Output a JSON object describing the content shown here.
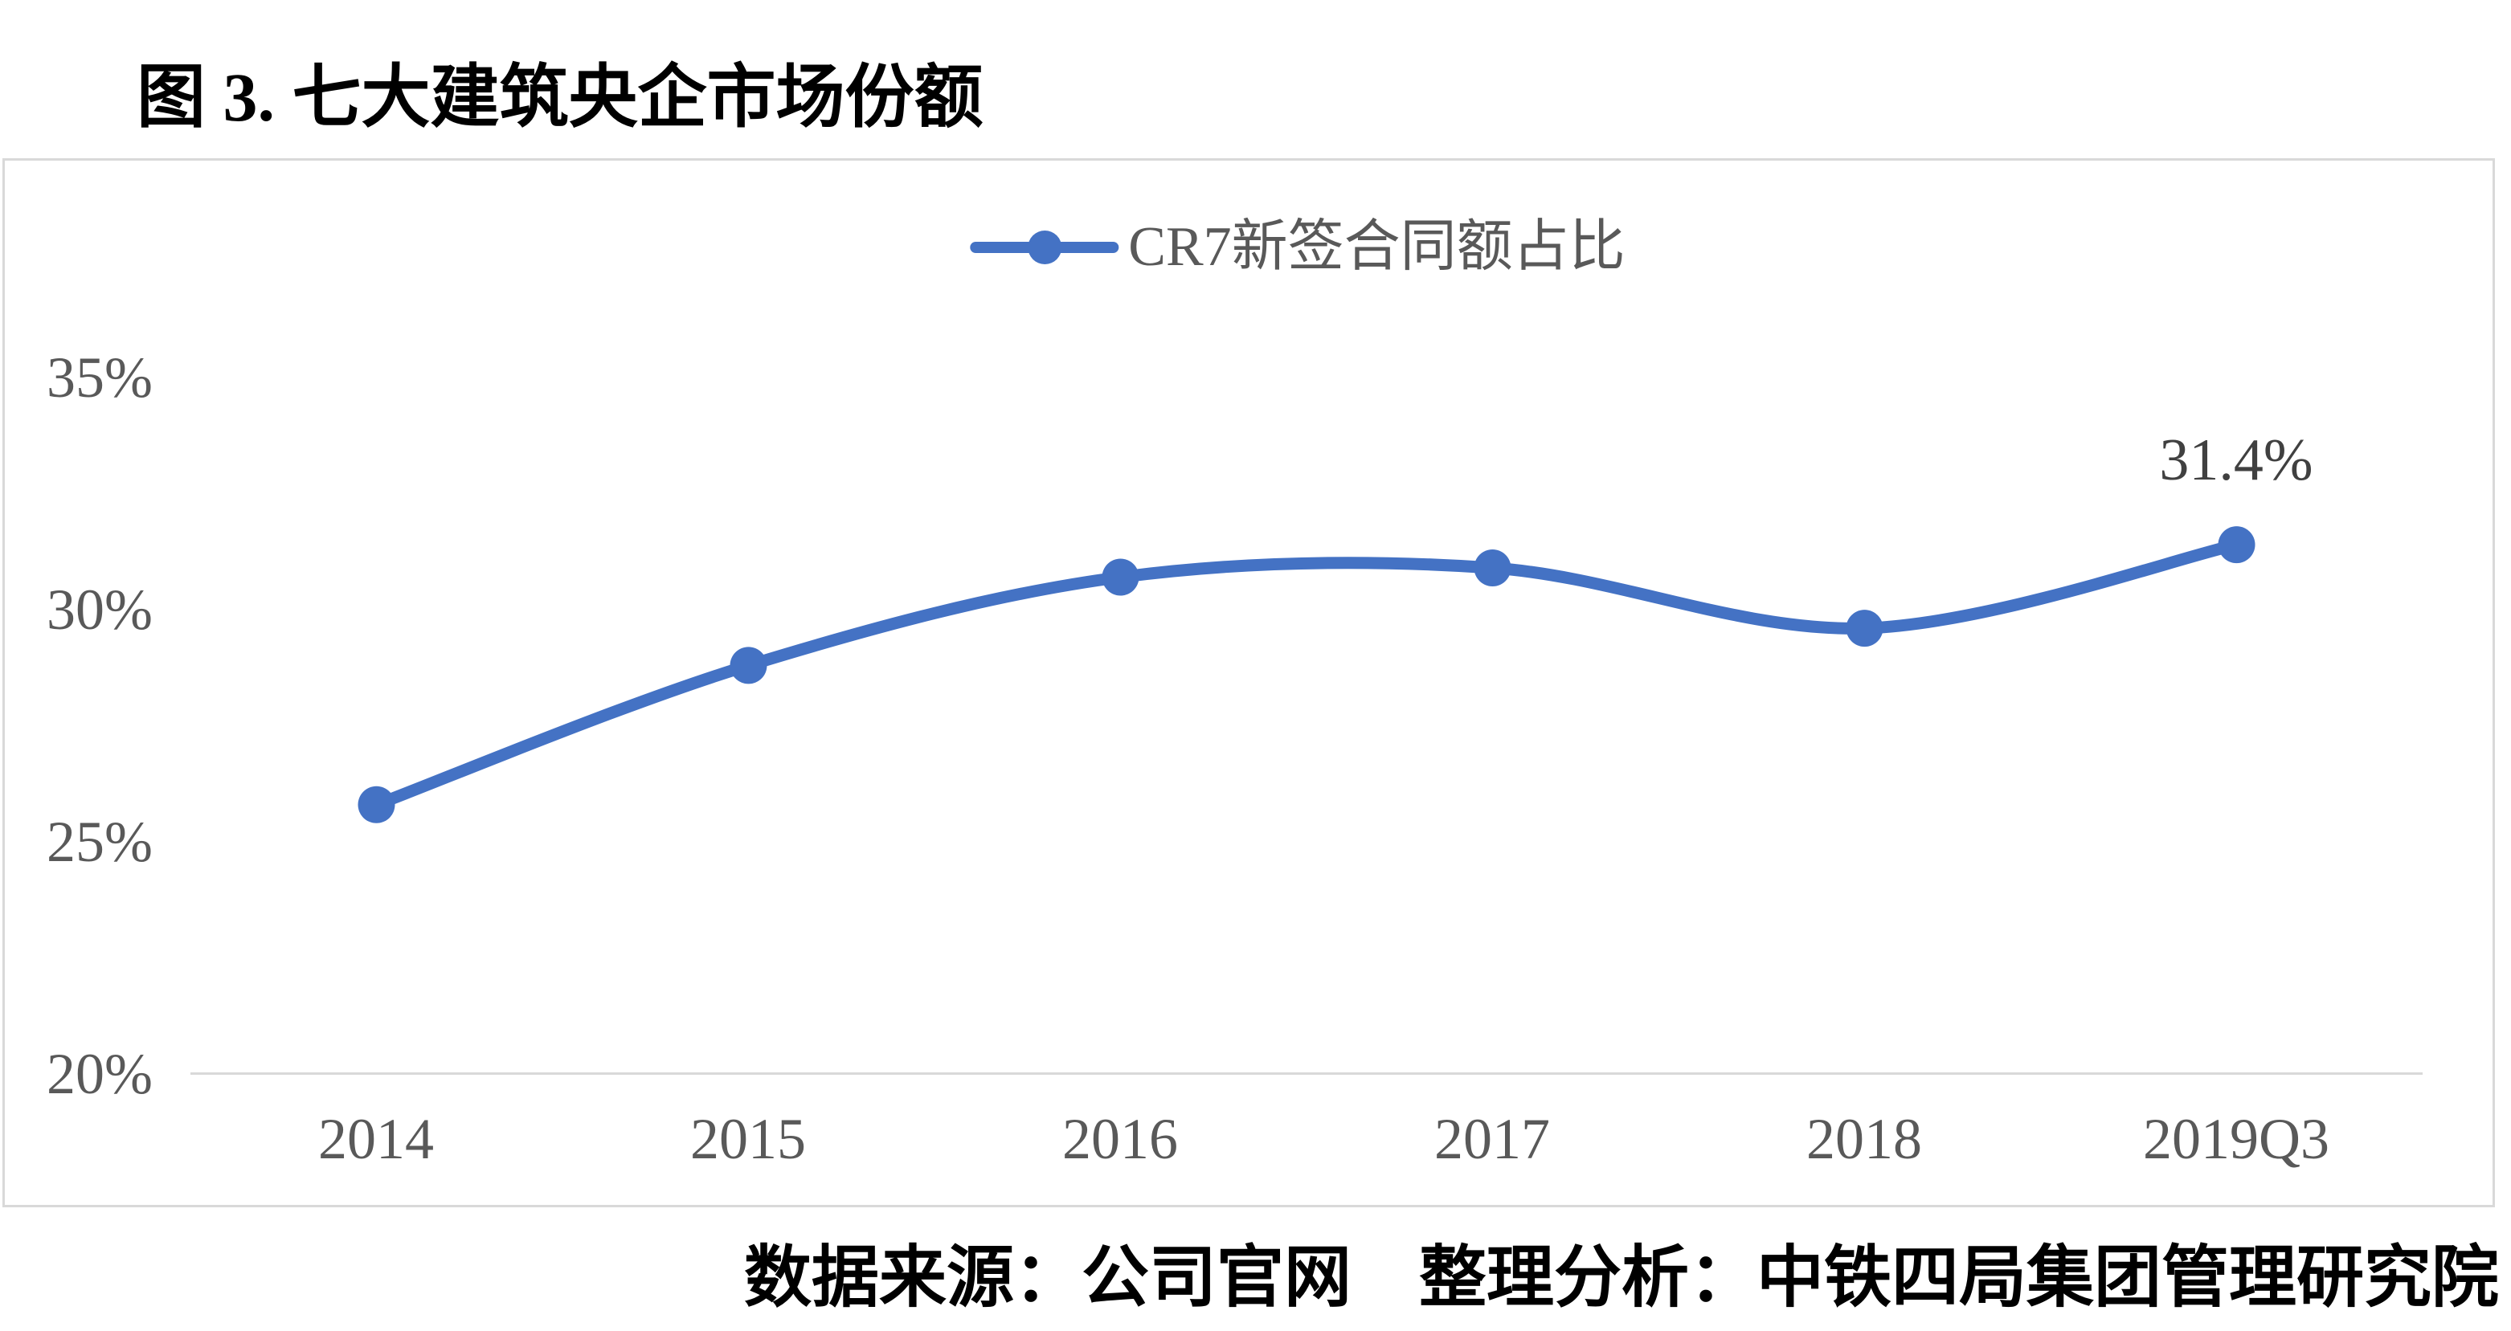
{
  "header": {
    "title": "图 3. 七大建筑央企市场份额"
  },
  "legend": {
    "label": "CR7新签合同额占比",
    "marker": "line-with-dot-icon"
  },
  "footer": {
    "source": "数据来源：公司官网　整理分析：中铁四局集团管理研究院"
  },
  "colors": {
    "series": "#4472C4",
    "axis_text": "#595959",
    "data_label_text": "#404040",
    "frame_border": "#D9D9D9",
    "background": "#FFFFFF"
  },
  "chart_data": {
    "type": "line",
    "title": "图 3. 七大建筑央企市场份额",
    "categories": [
      "2014",
      "2015",
      "2016",
      "2017",
      "2018",
      "2019Q3"
    ],
    "series": [
      {
        "name": "CR7新签合同额占比",
        "values": [
          25.8,
          28.8,
          30.7,
          30.9,
          29.6,
          31.4
        ]
      }
    ],
    "xlabel": "",
    "ylabel": "",
    "ylim": [
      20,
      35
    ],
    "yticks": [
      "35%",
      "30%",
      "25%",
      "20%"
    ],
    "grid": false,
    "smooth": true,
    "marker": "circle",
    "legend_position": "top-center",
    "annotations": [
      {
        "text": "31.4%",
        "category": "2019Q3",
        "series": "CR7新签合同额占比",
        "position": "above-point"
      }
    ]
  }
}
